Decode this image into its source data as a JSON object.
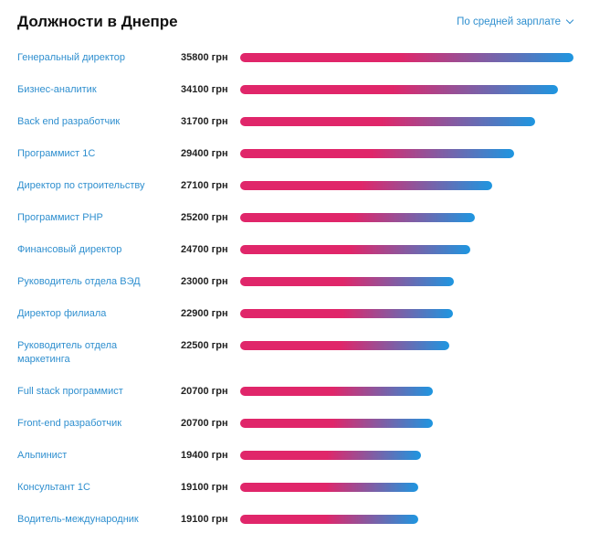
{
  "header": {
    "title": "Должности в Днепре",
    "sort_label": "По средней зарплате",
    "sort_icon": "chevron-down-icon"
  },
  "colors": {
    "bar_start": "#e0266a",
    "bar_end": "#1e96e0",
    "link": "#2f8fcf"
  },
  "chart_data": {
    "type": "bar",
    "orientation": "horizontal",
    "unit": "грн",
    "categories": [
      "Генеральный директор",
      "Бизнес-аналитик",
      "Back end разработчик",
      "Программист 1С",
      "Директор по строительству",
      "Программист PHP",
      "Финансовый директор",
      "Руководитель отдела ВЭД",
      "Директор филиала",
      "Руководитель отдела маркетинга",
      "Full stack программист",
      "Front-end разработчик",
      "Альпинист",
      "Консультант 1С",
      "Водитель-международник"
    ],
    "values": [
      35800,
      34100,
      31700,
      29400,
      27100,
      25200,
      24700,
      23000,
      22900,
      22500,
      20700,
      20700,
      19400,
      19100,
      19100
    ],
    "value_labels": [
      "35800 грн",
      "34100 грн",
      "31700 грн",
      "29400 грн",
      "27100 грн",
      "25200 грн",
      "24700 грн",
      "23000 грн",
      "22900 грн",
      "22500 грн",
      "20700 грн",
      "20700 грн",
      "19400 грн",
      "19100 грн",
      "19100 грн"
    ],
    "title": "Должности в Днепре",
    "xlim": [
      0,
      35800
    ]
  }
}
